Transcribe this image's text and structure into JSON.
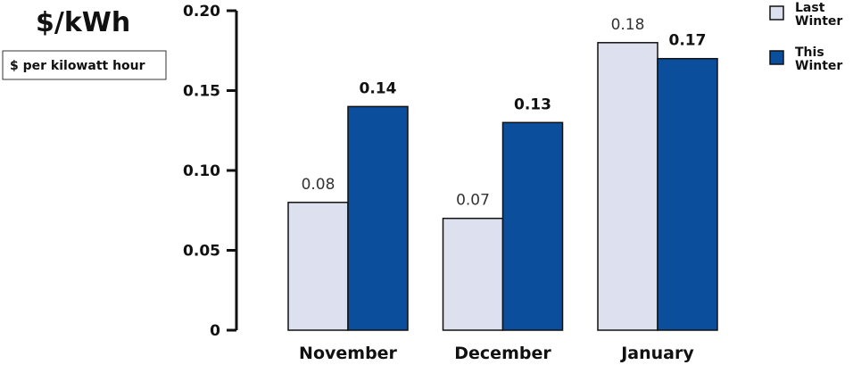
{
  "chart_data": {
    "type": "bar",
    "title": "$/kWh",
    "unit_label": "$ per kilowatt hour",
    "categories": [
      "November",
      "December",
      "January"
    ],
    "series": [
      {
        "name": "Last Winter",
        "values": [
          0.08,
          0.07,
          0.18
        ],
        "color": "#dde1ef",
        "labels": [
          "0.08",
          "0.07",
          "0.18"
        ]
      },
      {
        "name": "This Winter",
        "values": [
          0.14,
          0.13,
          0.17
        ],
        "color": "#0a4e9c",
        "labels": [
          "0.14",
          "0.13",
          "0.17"
        ]
      }
    ],
    "legend": {
      "position": "top-right",
      "items": [
        [
          "Last",
          "Winter"
        ],
        [
          "This",
          "Winter"
        ]
      ]
    },
    "ylim": [
      0,
      0.2
    ],
    "yticks": [
      0,
      0.05,
      0.1,
      0.15,
      0.2
    ],
    "ytick_labels": [
      "0",
      "0.05",
      "0.10",
      "0.15",
      "0.20"
    ],
    "grid": false
  }
}
